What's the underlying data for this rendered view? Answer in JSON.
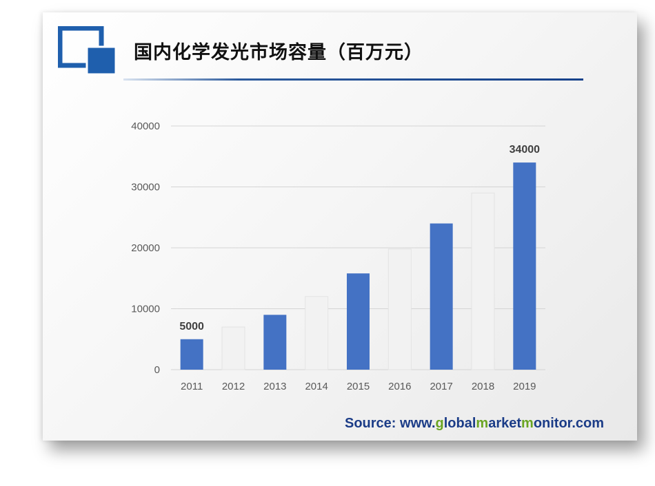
{
  "title": "国内化学发光市场容量（百万元）",
  "source": {
    "prefix": "Source: www.",
    "part1_g": "g",
    "part2": "lobal",
    "part3_m": "m",
    "part4": "arket",
    "part5_m": "m",
    "part6": "onitor.com"
  },
  "colors": {
    "brand_blue": "#1f5fad",
    "bar_blue": "#4472c4",
    "bar_white": "#f2f2f2",
    "source_blue": "#1b3c87",
    "source_green": "#6aa523"
  },
  "chart_data": {
    "type": "bar",
    "title": "国内化学发光市场容量（百万元）",
    "categories": [
      "2011",
      "2012",
      "2013",
      "2014",
      "2015",
      "2016",
      "2017",
      "2018",
      "2019"
    ],
    "values": [
      5000,
      7000,
      9000,
      12000,
      15800,
      19800,
      24000,
      29000,
      34000
    ],
    "bar_colors": [
      "blue",
      "white",
      "blue",
      "white",
      "blue",
      "white",
      "blue",
      "white",
      "blue"
    ],
    "data_labels": {
      "2011": "5000",
      "2019": "34000"
    },
    "y_ticks": [
      "0",
      "10000",
      "20000",
      "30000",
      "40000"
    ],
    "ylim": [
      0,
      40000
    ],
    "grid": true,
    "legend": "none"
  }
}
